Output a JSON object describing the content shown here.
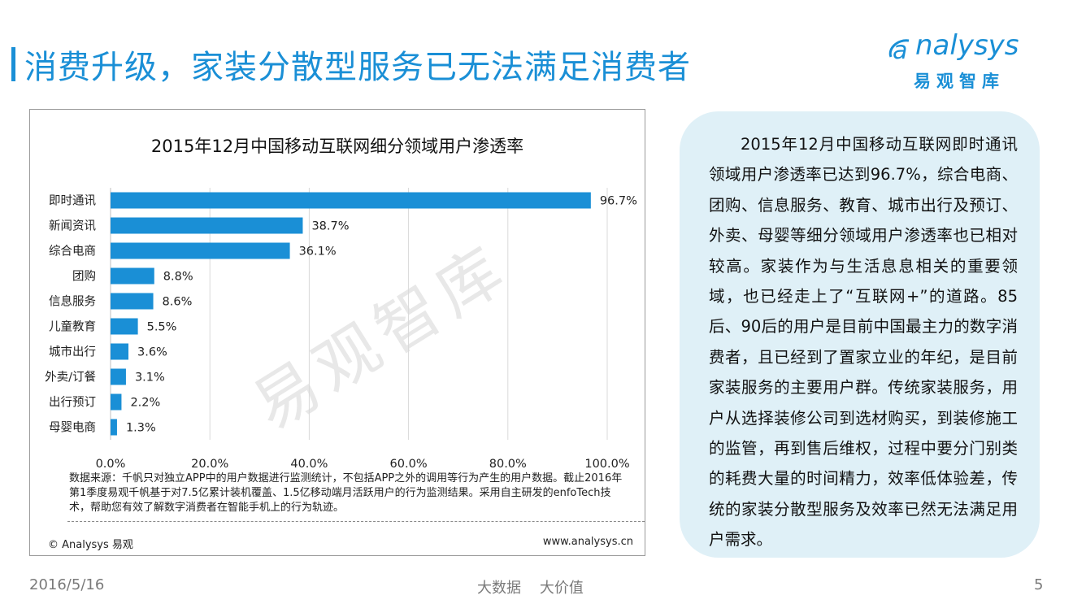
{
  "page": {
    "title": "消费升级，家装分散型服务已无法满足消费者"
  },
  "logo": {
    "name": "nalysys",
    "first_letter_mark": "a",
    "cn": "易观智库"
  },
  "chart_data": {
    "type": "bar",
    "orientation": "horizontal",
    "title": "2015年12月中国移动互联网细分领域用户渗透率",
    "categories": [
      "即时通讯",
      "新闻资讯",
      "综合电商",
      "团购",
      "信息服务",
      "儿童教育",
      "城市出行",
      "外卖/订餐",
      "出行预订",
      "母婴电商"
    ],
    "values": [
      96.7,
      38.7,
      36.1,
      8.8,
      8.6,
      5.5,
      3.6,
      3.1,
      2.2,
      1.3
    ],
    "value_labels": [
      "96.7%",
      "38.7%",
      "36.1%",
      "8.8%",
      "8.6%",
      "5.5%",
      "3.6%",
      "3.1%",
      "2.2%",
      "1.3%"
    ],
    "xlim": [
      0,
      100
    ],
    "x_ticks": [
      0,
      20,
      40,
      60,
      80,
      100
    ],
    "x_tick_labels": [
      "0.0%",
      "20.0%",
      "40.0%",
      "60.0%",
      "80.0%",
      "100.0%"
    ],
    "grid": "vertical",
    "xlabel": "",
    "ylabel": "",
    "bar_color": "#1a8fd6"
  },
  "chart_notes": {
    "source": "数据来源：千帆只对独立APP中的用户数据进行监测统计，不包括APP之外的调用等行为产生的用户数据。截止2016年第1季度易观千帆基于对7.5亿累计装机覆盖、1.5亿移动端月活跃用户的行为监测结果。采用自主研发的enfoTech技术，帮助您有效了解数字消费者在智能手机上的行为轨迹。",
    "copyright": "© Analysys 易观",
    "website": "www.analysys.cn",
    "watermark": "易观智库"
  },
  "summary": {
    "text": "2015年12月中国移动互联网即时通讯领域用户渗透率已达到96.7%，综合电商、团购、信息服务、教育、城市出行及预订、外卖、母婴等细分领域用户渗透率也已相对较高。家装作为与生活息息相关的重要领域，也已经走上了“互联网+”的道路。85后、90后的用户是目前中国最主力的数字消费者，且已经到了置家立业的年纪，是目前家装服务的主要用户群。传统家装服务，用户从选择装修公司到选材购买，到装修施工的监管，再到售后维权，过程中要分门别类的耗费大量的时间精力，效率低体验差，传统的家装分散型服务及效率已然无法满足用户需求。"
  },
  "footer": {
    "date": "2016/5/16",
    "center": "大数据    大价值",
    "page_number": "5"
  },
  "colors": {
    "accent": "#1a8fd6",
    "panel_bg": "#dff0f7"
  }
}
